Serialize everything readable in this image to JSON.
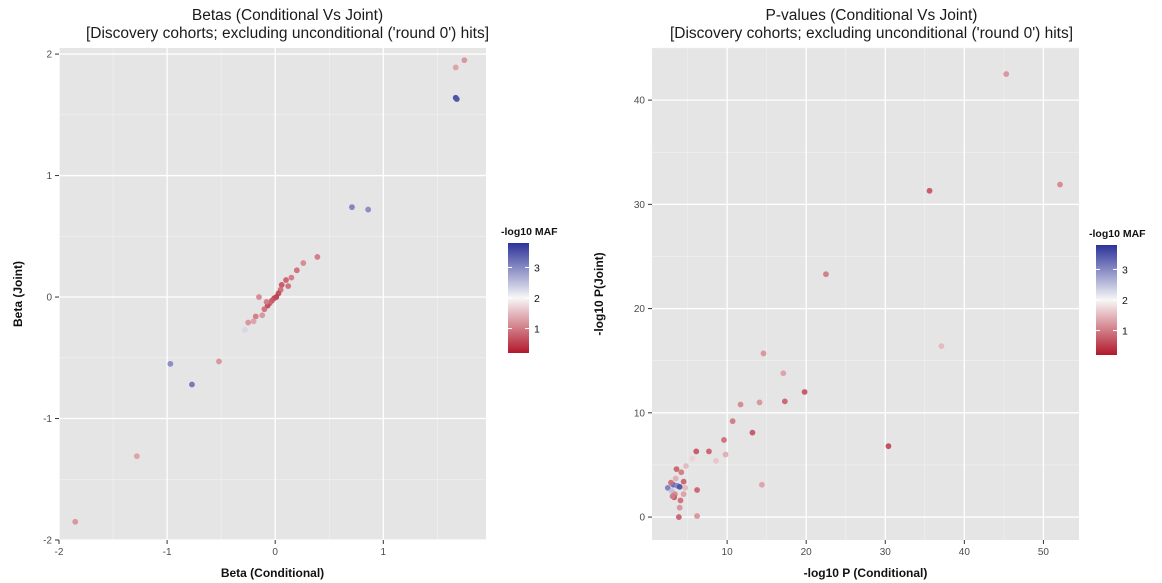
{
  "chart_data": [
    {
      "type": "scatter",
      "title": "Betas (Conditional Vs Joint)",
      "subtitle": "[Discovery cohorts; excluding unconditional ('round 0') hits]",
      "xlabel": "Beta (Conditional)",
      "ylabel": "Beta (Joint)",
      "xlim": [
        -2,
        1.95
      ],
      "ylim": [
        -2,
        2.05
      ],
      "xticks": [
        -2,
        -1,
        0,
        1
      ],
      "yticks": [
        -2,
        -1,
        0,
        1,
        2
      ],
      "grid": true,
      "legend": {
        "title": "-log10 MAF",
        "ticks": [
          1,
          2,
          3
        ],
        "range": [
          0.2,
          3.8
        ],
        "colors": {
          "low": "#b2182b",
          "mid": "#f7f7f7",
          "high": "#2c3399"
        },
        "placement": "right"
      },
      "points": [
        {
          "x": 1.67,
          "y": 1.64,
          "maf": 3.6
        },
        {
          "x": 1.68,
          "y": 1.63,
          "maf": 3.5
        },
        {
          "x": 1.75,
          "y": 1.95,
          "maf": 1.2
        },
        {
          "x": 1.67,
          "y": 1.89,
          "maf": 1.3
        },
        {
          "x": 0.71,
          "y": 0.74,
          "maf": 3.1
        },
        {
          "x": 0.86,
          "y": 0.72,
          "maf": 3.0
        },
        {
          "x": 0.39,
          "y": 0.33,
          "maf": 1.0
        },
        {
          "x": 0.26,
          "y": 0.28,
          "maf": 1.1
        },
        {
          "x": 0.2,
          "y": 0.22,
          "maf": 0.9
        },
        {
          "x": 0.15,
          "y": 0.16,
          "maf": 1.0
        },
        {
          "x": 0.1,
          "y": 0.14,
          "maf": 0.8
        },
        {
          "x": 0.12,
          "y": 0.09,
          "maf": 0.9
        },
        {
          "x": 0.06,
          "y": 0.1,
          "maf": 0.7
        },
        {
          "x": 0.05,
          "y": 0.06,
          "maf": 0.9
        },
        {
          "x": 0.03,
          "y": 0.03,
          "maf": 0.6
        },
        {
          "x": 0.01,
          "y": 0.0,
          "maf": 0.5
        },
        {
          "x": -0.01,
          "y": -0.01,
          "maf": 0.6
        },
        {
          "x": -0.03,
          "y": -0.03,
          "maf": 0.7
        },
        {
          "x": -0.05,
          "y": -0.05,
          "maf": 0.8
        },
        {
          "x": -0.07,
          "y": -0.07,
          "maf": 0.6
        },
        {
          "x": -0.08,
          "y": -0.04,
          "maf": 1.0
        },
        {
          "x": -0.1,
          "y": -0.1,
          "maf": 0.9
        },
        {
          "x": -0.15,
          "y": 0.0,
          "maf": 1.1
        },
        {
          "x": -0.12,
          "y": -0.15,
          "maf": 1.2
        },
        {
          "x": -0.18,
          "y": -0.16,
          "maf": 1.0
        },
        {
          "x": -0.2,
          "y": -0.2,
          "maf": 1.3
        },
        {
          "x": -0.25,
          "y": -0.21,
          "maf": 1.2
        },
        {
          "x": -0.28,
          "y": -0.27,
          "maf": 2.3
        },
        {
          "x": -0.52,
          "y": -0.53,
          "maf": 1.2
        },
        {
          "x": -0.97,
          "y": -0.55,
          "maf": 3.0
        },
        {
          "x": -0.77,
          "y": -0.72,
          "maf": 3.2
        },
        {
          "x": -1.28,
          "y": -1.31,
          "maf": 1.3
        },
        {
          "x": -1.85,
          "y": -1.85,
          "maf": 1.2
        }
      ]
    },
    {
      "type": "scatter",
      "title": "P-values (Conditional Vs Joint)",
      "subtitle": "[Discovery cohorts; excluding unconditional ('round 0') hits]",
      "xlabel": "-log10 P (Conditional)",
      "ylabel": "-log10 P(Joint)",
      "xlim": [
        0.5,
        54.5
      ],
      "ylim": [
        -2.2,
        45
      ],
      "xticks": [
        10,
        20,
        30,
        40,
        50
      ],
      "yticks": [
        0,
        10,
        20,
        30,
        40
      ],
      "grid": true,
      "legend": {
        "title": "-log10 MAF",
        "ticks": [
          1,
          2,
          3
        ],
        "range": [
          0.2,
          3.8
        ],
        "colors": {
          "low": "#b2182b",
          "mid": "#f7f7f7",
          "high": "#2c3399"
        },
        "placement": "right"
      },
      "points": [
        {
          "x": 45.3,
          "y": 42.5,
          "maf": 1.2
        },
        {
          "x": 35.6,
          "y": 31.3,
          "maf": 0.7
        },
        {
          "x": 52.1,
          "y": 31.9,
          "maf": 1.1
        },
        {
          "x": 22.5,
          "y": 23.3,
          "maf": 1.0
        },
        {
          "x": 37.1,
          "y": 16.4,
          "maf": 1.5
        },
        {
          "x": 14.6,
          "y": 15.7,
          "maf": 1.2
        },
        {
          "x": 17.1,
          "y": 13.8,
          "maf": 1.3
        },
        {
          "x": 11.7,
          "y": 10.8,
          "maf": 1.1
        },
        {
          "x": 14.1,
          "y": 11.0,
          "maf": 1.2
        },
        {
          "x": 17.3,
          "y": 11.1,
          "maf": 0.8
        },
        {
          "x": 19.8,
          "y": 12.0,
          "maf": 0.7
        },
        {
          "x": 10.7,
          "y": 9.2,
          "maf": 1.0
        },
        {
          "x": 13.2,
          "y": 8.1,
          "maf": 0.7
        },
        {
          "x": 9.6,
          "y": 7.4,
          "maf": 0.9
        },
        {
          "x": 30.4,
          "y": 6.8,
          "maf": 0.6
        },
        {
          "x": 7.7,
          "y": 6.3,
          "maf": 0.8
        },
        {
          "x": 6.1,
          "y": 6.3,
          "maf": 0.7
        },
        {
          "x": 9.8,
          "y": 6.0,
          "maf": 1.4
        },
        {
          "x": 8.6,
          "y": 5.4,
          "maf": 1.6
        },
        {
          "x": 5.6,
          "y": 5.6,
          "maf": 1.7
        },
        {
          "x": 4.8,
          "y": 4.9,
          "maf": 1.5
        },
        {
          "x": 14.4,
          "y": 3.1,
          "maf": 1.3
        },
        {
          "x": 6.2,
          "y": 2.6,
          "maf": 0.8
        },
        {
          "x": 6.2,
          "y": 0.1,
          "maf": 1.2
        },
        {
          "x": 3.6,
          "y": 4.6,
          "maf": 0.8
        },
        {
          "x": 4.2,
          "y": 4.3,
          "maf": 1.0
        },
        {
          "x": 3.2,
          "y": 3.1,
          "maf": 3.3
        },
        {
          "x": 3.7,
          "y": 3.0,
          "maf": 3.0
        },
        {
          "x": 4.0,
          "y": 2.9,
          "maf": 3.5
        },
        {
          "x": 2.5,
          "y": 2.8,
          "maf": 3.1
        },
        {
          "x": 3.0,
          "y": 2.5,
          "maf": 2.5
        },
        {
          "x": 4.5,
          "y": 3.4,
          "maf": 0.8
        },
        {
          "x": 3.4,
          "y": 2.2,
          "maf": 1.1
        },
        {
          "x": 4.1,
          "y": 1.6,
          "maf": 0.9
        },
        {
          "x": 3.3,
          "y": 1.9,
          "maf": 0.7
        },
        {
          "x": 4.5,
          "y": 2.2,
          "maf": 1.3
        },
        {
          "x": 4.0,
          "y": 0.9,
          "maf": 1.2
        },
        {
          "x": 3.9,
          "y": 0.0,
          "maf": 0.8
        },
        {
          "x": 3.1,
          "y": 2.0,
          "maf": 1.0
        },
        {
          "x": 4.7,
          "y": 2.8,
          "maf": 1.5
        },
        {
          "x": 3.5,
          "y": 3.7,
          "maf": 1.4
        },
        {
          "x": 2.9,
          "y": 3.3,
          "maf": 0.9
        }
      ]
    }
  ]
}
